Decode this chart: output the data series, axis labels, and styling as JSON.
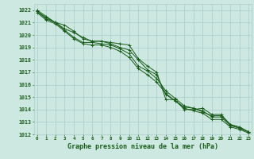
{
  "title": "Graphe pression niveau de la mer (hPa)",
  "background_color": "#cce8e0",
  "grid_color": "#aacccc",
  "line_color": "#1a5c1a",
  "xlim_min": -0.3,
  "xlim_max": 23.3,
  "ylim_min": 1012,
  "ylim_max": 1022.5,
  "series": [
    [
      1022.0,
      1021.5,
      1021.0,
      1020.8,
      1020.3,
      1019.7,
      1019.5,
      1019.5,
      1019.4,
      1019.3,
      1019.2,
      1018.1,
      1017.5,
      1017.0,
      1014.8,
      1014.8,
      1014.0,
      1014.0,
      1014.1,
      1013.6,
      1013.6,
      1012.8,
      1012.5,
      1012.2
    ],
    [
      1021.9,
      1021.4,
      1021.0,
      1020.5,
      1020.2,
      1019.8,
      1019.5,
      1019.5,
      1019.3,
      1019.0,
      1018.8,
      1018.0,
      1017.2,
      1016.8,
      1015.2,
      1014.7,
      1014.2,
      1014.1,
      1013.8,
      1013.5,
      1013.5,
      1012.8,
      1012.6,
      1012.2
    ],
    [
      1021.9,
      1021.3,
      1021.0,
      1020.4,
      1019.8,
      1019.4,
      1019.4,
      1019.3,
      1019.2,
      1018.9,
      1018.5,
      1017.5,
      1017.1,
      1016.5,
      1015.5,
      1014.9,
      1014.3,
      1014.1,
      1013.9,
      1013.4,
      1013.4,
      1012.7,
      1012.5,
      1012.2
    ],
    [
      1021.8,
      1021.2,
      1020.9,
      1020.3,
      1019.7,
      1019.3,
      1019.2,
      1019.2,
      1019.0,
      1018.7,
      1018.2,
      1017.3,
      1016.8,
      1016.2,
      1015.3,
      1014.7,
      1014.1,
      1013.9,
      1013.7,
      1013.2,
      1013.2,
      1012.6,
      1012.4,
      1012.1
    ]
  ],
  "yticks": [
    1012,
    1013,
    1014,
    1015,
    1016,
    1017,
    1018,
    1019,
    1020,
    1021,
    1022
  ],
  "xticks": [
    0,
    1,
    2,
    3,
    4,
    5,
    6,
    7,
    8,
    9,
    10,
    11,
    12,
    13,
    14,
    15,
    16,
    17,
    18,
    19,
    20,
    21,
    22,
    23
  ]
}
